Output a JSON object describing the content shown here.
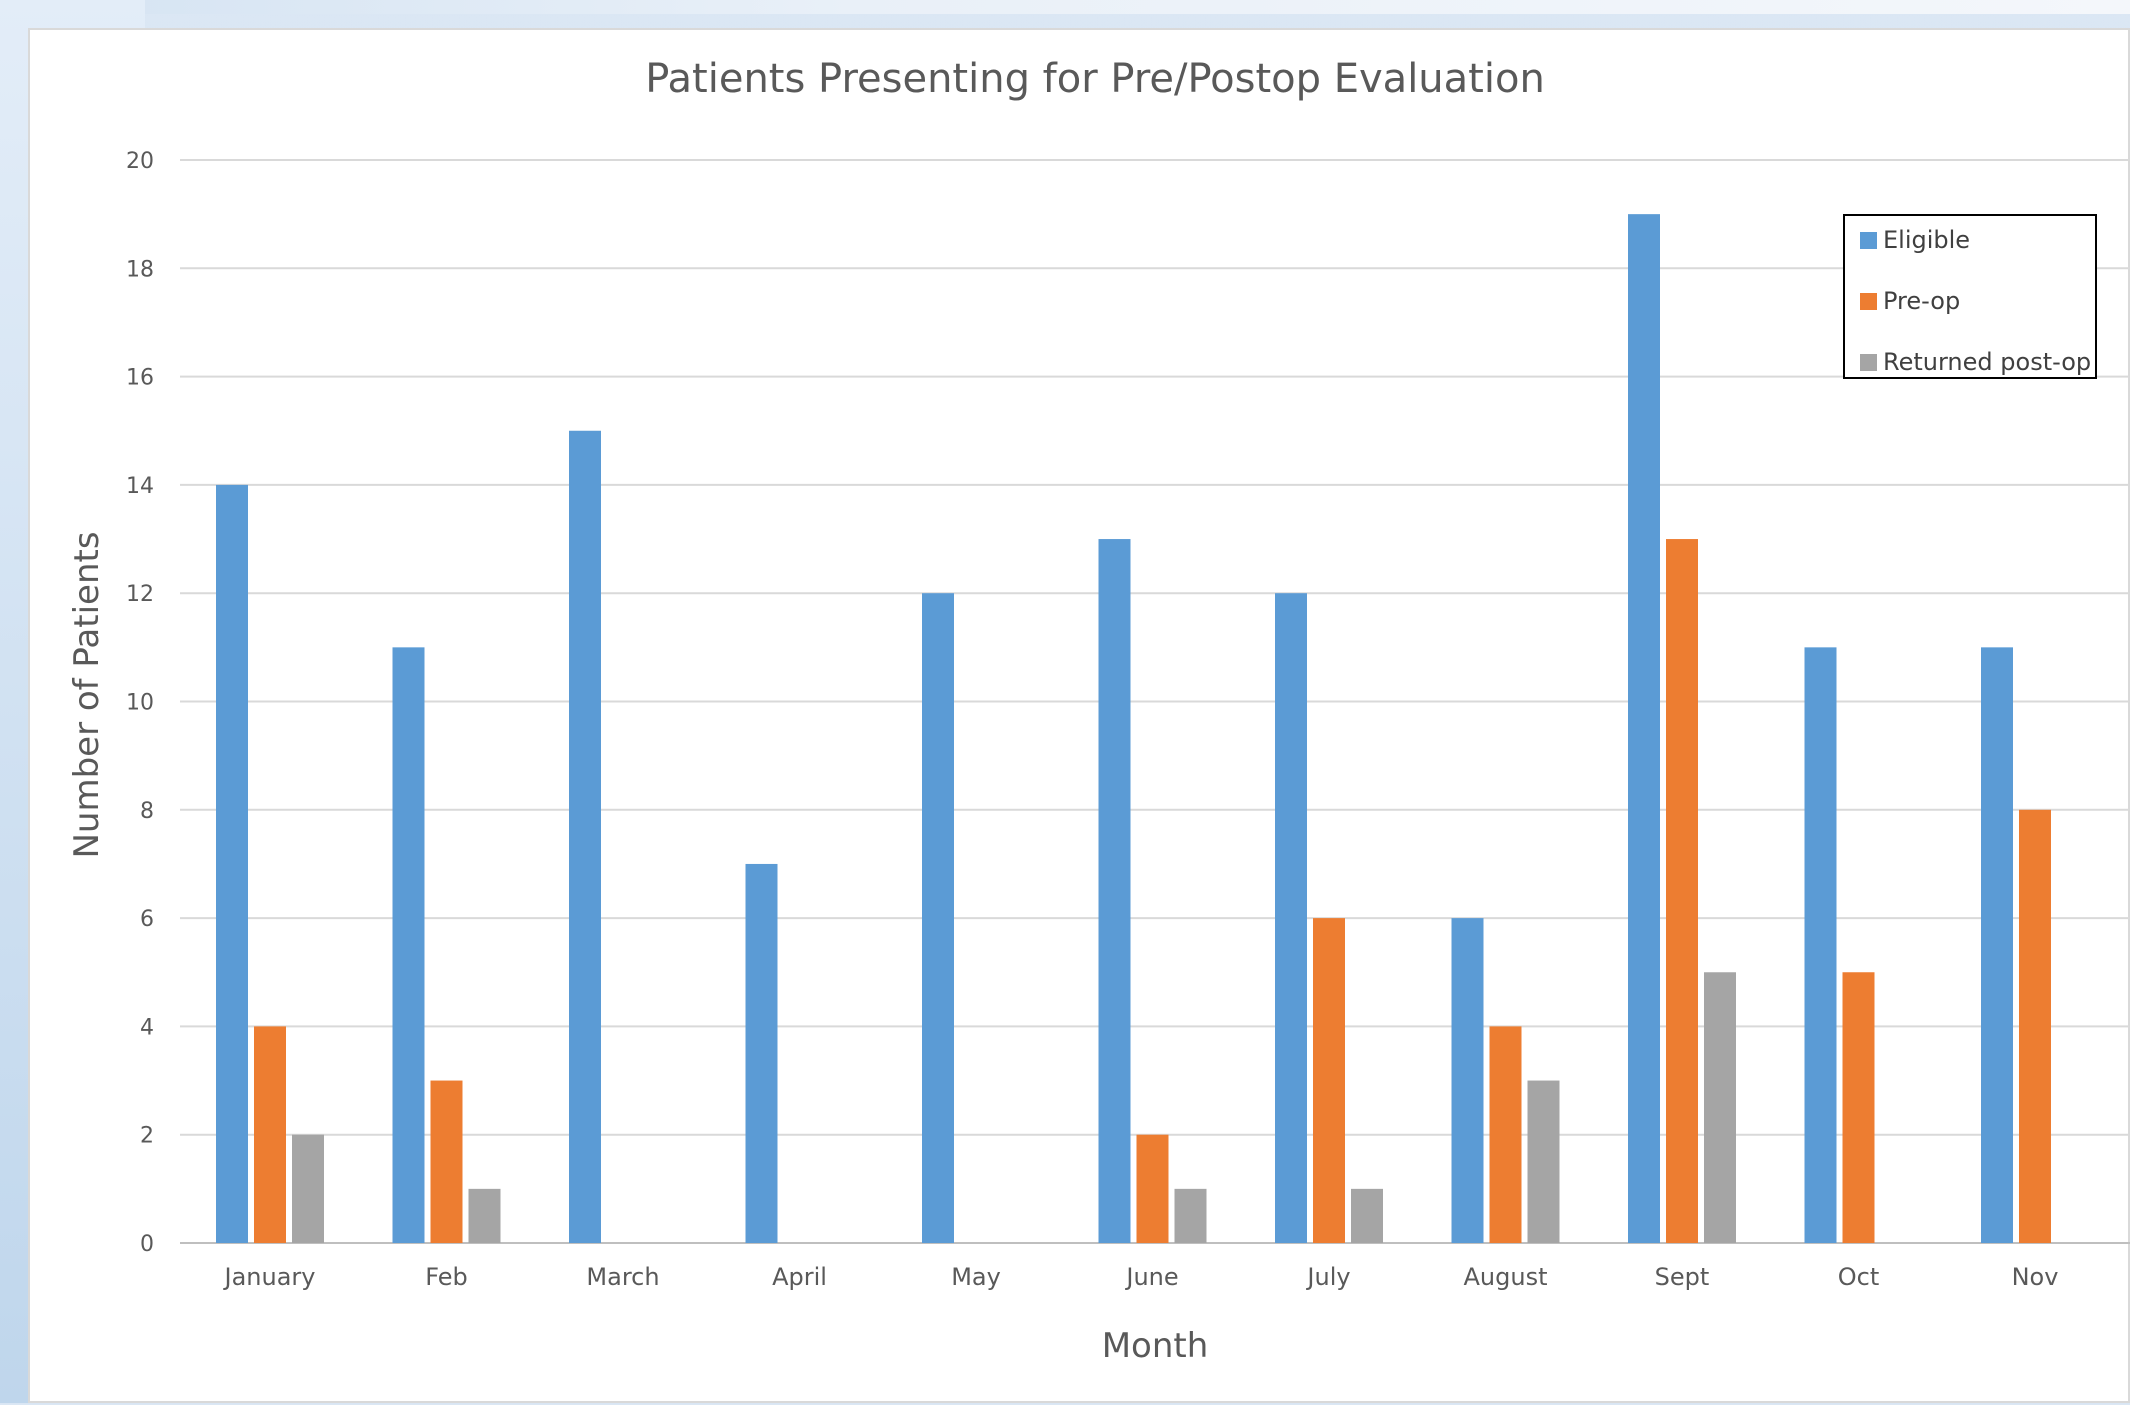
{
  "chart_data": {
    "type": "bar",
    "title": "Patients Presenting for Pre/Postop Evaluation",
    "xlabel": "Month",
    "ylabel": "Number of Patients",
    "ylim": [
      0,
      20
    ],
    "yticks": [
      0,
      2,
      4,
      6,
      8,
      10,
      12,
      14,
      16,
      18,
      20
    ],
    "grid": true,
    "legend_position": "top-right",
    "categories": [
      "January",
      "Feb",
      "March",
      "April",
      "May",
      "June",
      "July",
      "August",
      "Sept",
      "Oct",
      "Nov"
    ],
    "series": [
      {
        "name": "Eligible",
        "color": "#5b9bd5",
        "values": [
          14,
          11,
          15,
          7,
          12,
          13,
          12,
          6,
          19,
          11,
          11
        ]
      },
      {
        "name": "Pre-op",
        "color": "#ed7d31",
        "values": [
          4,
          3,
          0,
          0,
          0,
          2,
          6,
          4,
          13,
          5,
          8
        ]
      },
      {
        "name": "Returned post-op",
        "color": "#a5a5a5",
        "values": [
          2,
          1,
          0,
          0,
          0,
          1,
          1,
          3,
          5,
          0,
          0
        ]
      }
    ]
  }
}
